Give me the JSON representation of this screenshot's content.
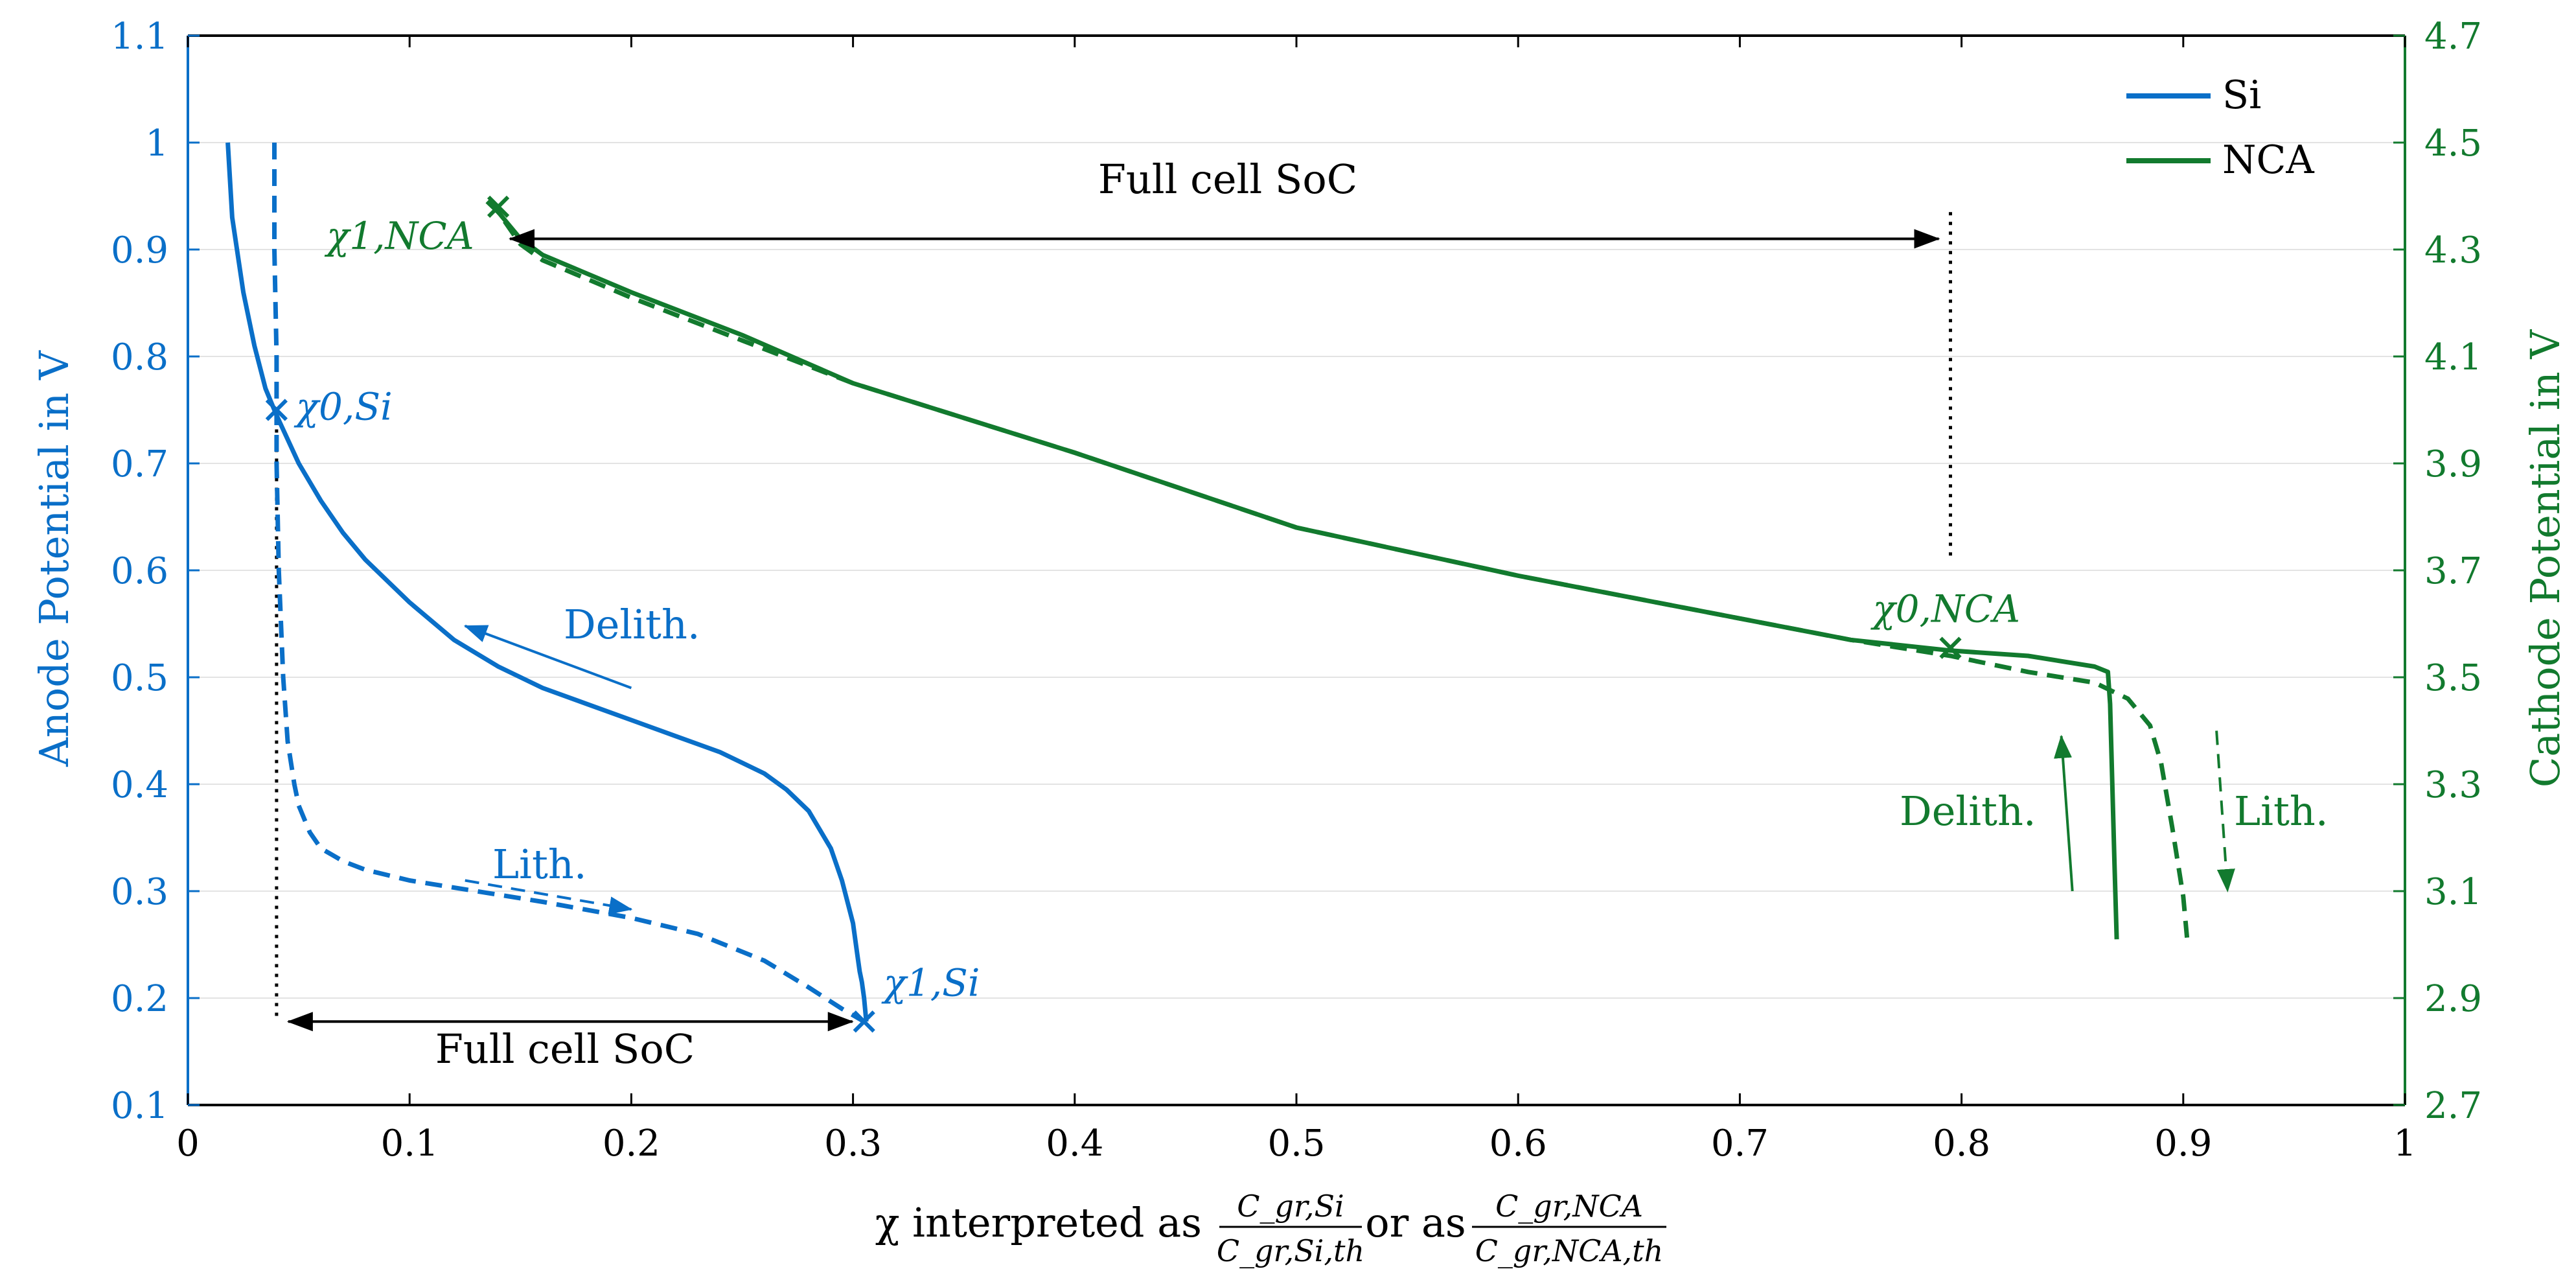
{
  "colors": {
    "si": "#0a6fc8",
    "nca": "#127a2e",
    "axis": "#000000",
    "grid": "#e3e3e3"
  },
  "chart_data": {
    "type": "line",
    "xlabel_prefix": "χ interpreted as",
    "xlabel_mid": "or as",
    "frac_si": {
      "num": "C_gr,Si",
      "den": "C_gr,Si,th"
    },
    "frac_nca": {
      "num": "C_gr,NCA",
      "den": "C_gr,NCA,th"
    },
    "ylabel_left": "Anode Potential in V",
    "ylabel_right": "Cathode Potential in V",
    "xlim": [
      0,
      1
    ],
    "ylim_left": [
      0.1,
      1.1
    ],
    "ylim_right": [
      2.7,
      4.7
    ],
    "x_ticks": [
      "0",
      "0.1",
      "0.2",
      "0.3",
      "0.4",
      "0.5",
      "0.6",
      "0.7",
      "0.8",
      "0.9",
      "1"
    ],
    "y_ticks_left": [
      "0.1",
      "0.2",
      "0.3",
      "0.4",
      "0.5",
      "0.6",
      "0.7",
      "0.8",
      "0.9",
      "1",
      "1.1"
    ],
    "y_ticks_right": [
      "2.7",
      "2.9",
      "3.1",
      "3.3",
      "3.5",
      "3.7",
      "3.9",
      "4.1",
      "4.3",
      "4.5",
      "4.7"
    ],
    "grid": true,
    "legend": {
      "placement": "top-right",
      "entries": [
        "Si",
        "NCA"
      ]
    },
    "series": [
      {
        "name": "Si",
        "axis": "left",
        "style": "solid",
        "x": [
          0.018,
          0.02,
          0.025,
          0.03,
          0.035,
          0.04,
          0.05,
          0.06,
          0.07,
          0.08,
          0.09,
          0.1,
          0.12,
          0.14,
          0.16,
          0.18,
          0.2,
          0.22,
          0.24,
          0.26,
          0.27,
          0.28,
          0.29,
          0.295,
          0.3,
          0.302,
          0.303,
          0.304,
          0.305,
          0.306
        ],
        "y": [
          1.0,
          0.93,
          0.86,
          0.81,
          0.77,
          0.745,
          0.7,
          0.665,
          0.635,
          0.61,
          0.59,
          0.57,
          0.535,
          0.51,
          0.49,
          0.475,
          0.46,
          0.445,
          0.43,
          0.41,
          0.395,
          0.375,
          0.34,
          0.31,
          0.27,
          0.24,
          0.225,
          0.215,
          0.2,
          0.178
        ]
      },
      {
        "name": "",
        "axis": "left",
        "style": "dashed",
        "x": [
          0.039,
          0.039,
          0.04,
          0.04,
          0.041,
          0.043,
          0.045,
          0.048,
          0.05,
          0.055,
          0.06,
          0.07,
          0.08,
          0.1,
          0.13,
          0.16,
          0.2,
          0.23,
          0.26,
          0.28,
          0.295,
          0.305
        ],
        "y": [
          1.0,
          0.9,
          0.8,
          0.7,
          0.6,
          0.5,
          0.44,
          0.4,
          0.38,
          0.355,
          0.34,
          0.328,
          0.32,
          0.31,
          0.3,
          0.29,
          0.275,
          0.26,
          0.235,
          0.21,
          0.19,
          0.178
        ]
      },
      {
        "name": "NCA",
        "axis": "right",
        "style": "solid",
        "x": [
          0.135,
          0.14,
          0.15,
          0.16,
          0.2,
          0.25,
          0.3,
          0.4,
          0.5,
          0.6,
          0.7,
          0.75,
          0.795,
          0.83,
          0.86,
          0.866,
          0.867,
          0.868,
          0.869,
          0.87
        ],
        "y": [
          4.39,
          4.37,
          4.32,
          4.29,
          4.22,
          4.14,
          4.05,
          3.92,
          3.78,
          3.69,
          3.61,
          3.57,
          3.55,
          3.54,
          3.52,
          3.51,
          3.45,
          3.3,
          3.15,
          3.01
        ]
      },
      {
        "name": "",
        "axis": "right",
        "style": "dashed",
        "x": [
          0.135,
          0.14,
          0.15,
          0.16,
          0.2,
          0.25,
          0.3,
          0.4,
          0.5,
          0.6,
          0.7,
          0.75,
          0.795,
          0.83,
          0.86,
          0.875,
          0.885,
          0.89,
          0.895,
          0.9,
          0.902
        ],
        "y": [
          4.39,
          4.37,
          4.31,
          4.28,
          4.21,
          4.13,
          4.05,
          3.92,
          3.78,
          3.69,
          3.61,
          3.57,
          3.54,
          3.51,
          3.49,
          3.46,
          3.41,
          3.34,
          3.22,
          3.09,
          3.0
        ]
      }
    ],
    "markers": [
      {
        "label": "χ0,Si",
        "x": 0.04,
        "y": 0.75,
        "axis": "left"
      },
      {
        "label": "χ1,Si",
        "x": 0.305,
        "y": 0.178,
        "axis": "left"
      },
      {
        "label": "χ1,NCA",
        "x": 0.14,
        "y": 4.38,
        "axis": "right"
      },
      {
        "label": "χ0,NCA",
        "x": 0.795,
        "y": 3.555,
        "axis": "right"
      }
    ],
    "annotations": {
      "full_cell_top": "Full cell SoC",
      "full_cell_bottom": "Full cell SoC",
      "si_delith": "Delith.",
      "si_lith": "Lith.",
      "nca_delith": "Delith.",
      "nca_lith": "Lith."
    }
  }
}
